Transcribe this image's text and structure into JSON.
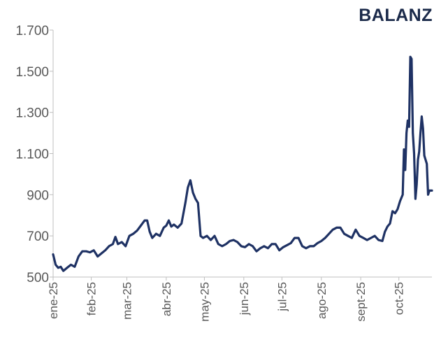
{
  "brand": {
    "logo_text": "BALANZ",
    "logo_color": "#1b2a4a"
  },
  "chart_data": {
    "type": "line",
    "title": "",
    "xlabel": "",
    "ylabel": "",
    "ylim": [
      500,
      1700
    ],
    "yticks": [
      500,
      700,
      900,
      1100,
      1300,
      1500,
      1700
    ],
    "ytick_labels": [
      "500",
      "700",
      "900",
      "1.100",
      "1.300",
      "1.500",
      "1.700"
    ],
    "xlim": [
      "2025-01-02",
      "2025-10-27"
    ],
    "xticks": [
      "2025-01-02",
      "2025-02-01",
      "2025-03-01",
      "2025-04-01",
      "2025-05-01",
      "2025-06-01",
      "2025-07-01",
      "2025-08-01",
      "2025-09-01",
      "2025-10-01"
    ],
    "xtick_labels": [
      "ene-25",
      "feb-25",
      "mar-25",
      "abr-25",
      "may-25",
      "jun-25",
      "jul-25",
      "ago-25",
      "sept-25",
      "oct-25"
    ],
    "grid": false,
    "line_color": "#1f3264",
    "axis_color": "#bfbfbf",
    "series": [
      {
        "values": [
          [
            "2025-01-02",
            610
          ],
          [
            "2025-01-04",
            560
          ],
          [
            "2025-01-06",
            545
          ],
          [
            "2025-01-08",
            550
          ],
          [
            "2025-01-10",
            530
          ],
          [
            "2025-01-13",
            545
          ],
          [
            "2025-01-16",
            560
          ],
          [
            "2025-01-19",
            550
          ],
          [
            "2025-01-22",
            600
          ],
          [
            "2025-01-25",
            625
          ],
          [
            "2025-01-28",
            625
          ],
          [
            "2025-01-31",
            620
          ],
          [
            "2025-02-03",
            630
          ],
          [
            "2025-02-06",
            600
          ],
          [
            "2025-02-09",
            615
          ],
          [
            "2025-02-12",
            630
          ],
          [
            "2025-02-15",
            650
          ],
          [
            "2025-02-18",
            660
          ],
          [
            "2025-02-20",
            695
          ],
          [
            "2025-02-22",
            660
          ],
          [
            "2025-02-25",
            670
          ],
          [
            "2025-02-28",
            650
          ],
          [
            "2025-03-03",
            700
          ],
          [
            "2025-03-06",
            710
          ],
          [
            "2025-03-09",
            725
          ],
          [
            "2025-03-12",
            750
          ],
          [
            "2025-03-15",
            775
          ],
          [
            "2025-03-17",
            775
          ],
          [
            "2025-03-19",
            720
          ],
          [
            "2025-03-21",
            690
          ],
          [
            "2025-03-24",
            710
          ],
          [
            "2025-03-27",
            700
          ],
          [
            "2025-03-30",
            740
          ],
          [
            "2025-04-01",
            750
          ],
          [
            "2025-04-03",
            775
          ],
          [
            "2025-04-05",
            745
          ],
          [
            "2025-04-07",
            755
          ],
          [
            "2025-04-10",
            740
          ],
          [
            "2025-04-13",
            760
          ],
          [
            "2025-04-16",
            860
          ],
          [
            "2025-04-18",
            935
          ],
          [
            "2025-04-20",
            970
          ],
          [
            "2025-04-22",
            910
          ],
          [
            "2025-04-24",
            880
          ],
          [
            "2025-04-26",
            860
          ],
          [
            "2025-04-28",
            700
          ],
          [
            "2025-04-30",
            690
          ],
          [
            "2025-05-03",
            700
          ],
          [
            "2025-05-06",
            680
          ],
          [
            "2025-05-09",
            700
          ],
          [
            "2025-05-12",
            660
          ],
          [
            "2025-05-15",
            650
          ],
          [
            "2025-05-18",
            660
          ],
          [
            "2025-05-21",
            675
          ],
          [
            "2025-05-24",
            680
          ],
          [
            "2025-05-27",
            670
          ],
          [
            "2025-05-30",
            650
          ],
          [
            "2025-06-02",
            645
          ],
          [
            "2025-06-05",
            660
          ],
          [
            "2025-06-08",
            650
          ],
          [
            "2025-06-11",
            625
          ],
          [
            "2025-06-14",
            640
          ],
          [
            "2025-06-17",
            650
          ],
          [
            "2025-06-20",
            640
          ],
          [
            "2025-06-23",
            660
          ],
          [
            "2025-06-26",
            660
          ],
          [
            "2025-06-29",
            630
          ],
          [
            "2025-07-02",
            645
          ],
          [
            "2025-07-05",
            655
          ],
          [
            "2025-07-08",
            665
          ],
          [
            "2025-07-11",
            690
          ],
          [
            "2025-07-14",
            690
          ],
          [
            "2025-07-17",
            650
          ],
          [
            "2025-07-20",
            640
          ],
          [
            "2025-07-23",
            650
          ],
          [
            "2025-07-26",
            650
          ],
          [
            "2025-07-29",
            665
          ],
          [
            "2025-08-01",
            675
          ],
          [
            "2025-08-04",
            690
          ],
          [
            "2025-08-07",
            710
          ],
          [
            "2025-08-10",
            730
          ],
          [
            "2025-08-13",
            740
          ],
          [
            "2025-08-16",
            740
          ],
          [
            "2025-08-19",
            710
          ],
          [
            "2025-08-22",
            700
          ],
          [
            "2025-08-25",
            690
          ],
          [
            "2025-08-28",
            730
          ],
          [
            "2025-08-31",
            700
          ],
          [
            "2025-09-03",
            690
          ],
          [
            "2025-09-06",
            680
          ],
          [
            "2025-09-09",
            690
          ],
          [
            "2025-09-12",
            700
          ],
          [
            "2025-09-15",
            680
          ],
          [
            "2025-09-18",
            675
          ],
          [
            "2025-09-20",
            720
          ],
          [
            "2025-09-22",
            745
          ],
          [
            "2025-09-24",
            760
          ],
          [
            "2025-09-26",
            820
          ],
          [
            "2025-09-28",
            810
          ],
          [
            "2025-09-30",
            830
          ],
          [
            "2025-10-02",
            870
          ],
          [
            "2025-10-04",
            900
          ],
          [
            "2025-10-05",
            1120
          ],
          [
            "2025-10-06",
            1020
          ],
          [
            "2025-10-07",
            1200
          ],
          [
            "2025-10-08",
            1260
          ],
          [
            "2025-10-09",
            1230
          ],
          [
            "2025-10-10",
            1570
          ],
          [
            "2025-10-11",
            1560
          ],
          [
            "2025-10-12",
            1200
          ],
          [
            "2025-10-13",
            1100
          ],
          [
            "2025-10-14",
            880
          ],
          [
            "2025-10-15",
            950
          ],
          [
            "2025-10-16",
            1070
          ],
          [
            "2025-10-17",
            1110
          ],
          [
            "2025-10-18",
            1200
          ],
          [
            "2025-10-19",
            1280
          ],
          [
            "2025-10-20",
            1220
          ],
          [
            "2025-10-21",
            1090
          ],
          [
            "2025-10-22",
            1070
          ],
          [
            "2025-10-23",
            1050
          ],
          [
            "2025-10-24",
            900
          ],
          [
            "2025-10-25",
            920
          ],
          [
            "2025-10-27",
            920
          ]
        ]
      }
    ]
  }
}
